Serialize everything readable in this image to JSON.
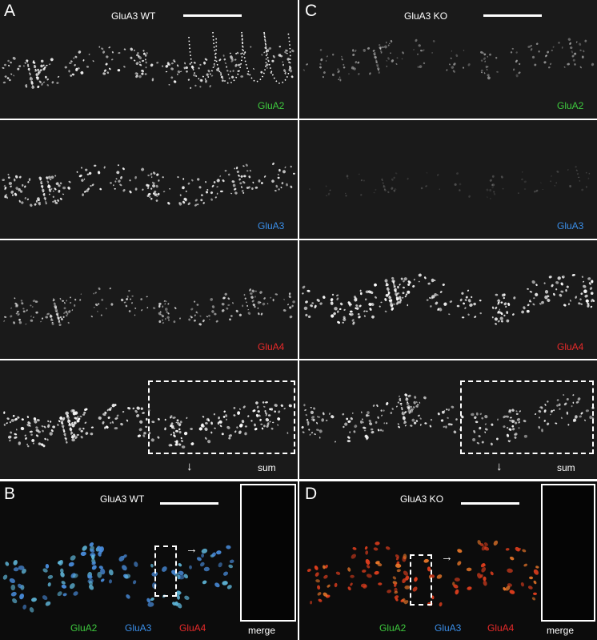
{
  "figure": {
    "panel_a": {
      "letter": "A",
      "title": "GluA3 WT",
      "rows": [
        {
          "label": "GluA2",
          "label_color": "#3ec83e"
        },
        {
          "label": "GluA3",
          "label_color": "#3a8ee8"
        },
        {
          "label": "GluA4",
          "label_color": "#e82a2a"
        },
        {
          "label": "sum",
          "label_color": "#ffffff"
        }
      ],
      "arrow": "↓"
    },
    "panel_c": {
      "letter": "C",
      "title": "GluA3 KO",
      "rows": [
        {
          "label": "GluA2",
          "label_color": "#3ec83e"
        },
        {
          "label": "GluA3",
          "label_color": "#3a8ee8"
        },
        {
          "label": "GluA4",
          "label_color": "#e82a2a"
        },
        {
          "label": "sum",
          "label_color": "#ffffff"
        }
      ],
      "arrow": "↓"
    },
    "panel_b": {
      "letter": "B",
      "title": "GluA3 WT",
      "channels": [
        {
          "label": "GluA2",
          "color": "#3ec83e"
        },
        {
          "label": "GluA3",
          "color": "#3a8ee8"
        },
        {
          "label": "GluA4",
          "color": "#e82a2a"
        }
      ],
      "inset_label": "merge",
      "arrow": "→"
    },
    "panel_d": {
      "letter": "D",
      "title": "GluA3 KO",
      "channels": [
        {
          "label": "GluA2",
          "color": "#3ec83e"
        },
        {
          "label": "GluA3",
          "color": "#3a8ee8"
        },
        {
          "label": "GluA4",
          "color": "#e82a2a"
        }
      ],
      "inset_label": "merge",
      "arrow": "→"
    }
  }
}
